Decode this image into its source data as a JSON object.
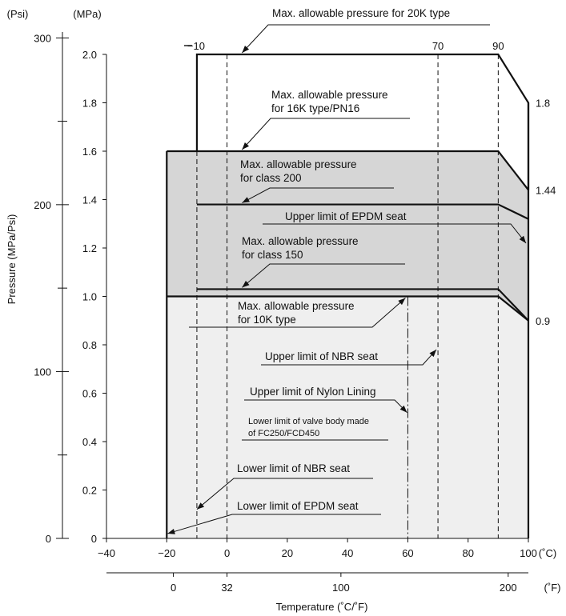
{
  "chart_data": {
    "type": "line",
    "xlabel": "Temperature (˚C/˚F)",
    "ylabel": "Pressure (MPa/Psi)",
    "units": {
      "y_mpa": "(MPa)",
      "y_psi": "(Psi)",
      "x_c": "(˚C)",
      "x_f": "(˚F)"
    },
    "xlim": [
      -40,
      100
    ],
    "ylim": [
      0,
      2.0
    ],
    "x_ticks_c": [
      "−40",
      "−20",
      "0",
      "20",
      "40",
      "60",
      "80",
      "100"
    ],
    "x_ticks_f": [
      {
        "label": "0",
        "c": -17.8
      },
      {
        "label": "32",
        "c": 0
      },
      {
        "label": "100",
        "c": 37.8
      },
      {
        "label": "200",
        "c": 93.3
      }
    ],
    "y_ticks_mpa": [
      "0",
      "0.2",
      "0.4",
      "0.6",
      "0.8",
      "1.0",
      "1.2",
      "1.4",
      "1.6",
      "1.8",
      "2.0"
    ],
    "y_ticks_psi": [
      {
        "label": "0",
        "mpa": 0
      },
      {
        "label": "100",
        "mpa": 0.6895
      },
      {
        "label": "200",
        "mpa": 1.379
      },
      {
        "label": "300",
        "mpa": 2.068
      }
    ],
    "series": [
      {
        "name": "Max. allowable pressure for 20K type",
        "x": [
          -10,
          -10,
          90,
          100,
          100
        ],
        "y": [
          1.6,
          2.0,
          2.0,
          1.8,
          1.44
        ]
      },
      {
        "name": "Max. allowable pressure for 16K type/PN16",
        "x": [
          -20,
          90,
          100
        ],
        "y": [
          1.6,
          1.6,
          1.44
        ]
      },
      {
        "name": "Max. allowable pressure for class 200",
        "x": [
          -10,
          90,
          100
        ],
        "y": [
          1.38,
          1.38,
          1.32
        ]
      },
      {
        "name": "Max. allowable pressure for class 150",
        "x": [
          -10,
          90,
          100
        ],
        "y": [
          1.03,
          1.03,
          0.9
        ]
      },
      {
        "name": "Max. allowable pressure for 10K type",
        "x": [
          -20,
          90,
          100
        ],
        "y": [
          1.0,
          1.0,
          0.9
        ]
      }
    ],
    "vertical_limits": [
      {
        "name": "Lower limit of EPDM seat",
        "x": -20
      },
      {
        "name": "Lower limit of NBR seat",
        "x": -10
      },
      {
        "name": "Lower limit of valve body made of FC250/FCD450",
        "x": 0
      },
      {
        "name": "Upper limit of Nylon Lining",
        "x": 60
      },
      {
        "name": "Upper limit of NBR seat",
        "x": 70
      },
      {
        "name": "Upper limit of EPDM seat",
        "x": 100
      }
    ],
    "top_labels": [
      "−10",
      "70",
      "90"
    ],
    "value_labels": [
      "1.8",
      "1.44",
      "0.9"
    ],
    "annotations": {
      "p20k": [
        "Max. allowable pressure for 20K type"
      ],
      "p16k": [
        "Max. allowable pressure",
        "for 16K type/PN16"
      ],
      "c200": [
        "Max. allowable pressure",
        "for class 200"
      ],
      "epdm_up": [
        "Upper limit of EPDM seat"
      ],
      "c150": [
        "Max. allowable pressure",
        "for class 150"
      ],
      "p10k": [
        "Max. allowable pressure",
        "for 10K type"
      ],
      "nbr_up": [
        "Upper limit of NBR seat"
      ],
      "nylon": [
        "Upper limit of Nylon Lining"
      ],
      "body": [
        "Lower limit of valve body made",
        "of FC250/FCD450"
      ],
      "nbr_low": [
        "Lower limit of NBR seat"
      ],
      "epdm_low": [
        "Lower limit of EPDM seat"
      ]
    },
    "colors": {
      "region_light": "#efefef",
      "region_dark": "#d6d6d6",
      "ink": "#111111"
    }
  }
}
